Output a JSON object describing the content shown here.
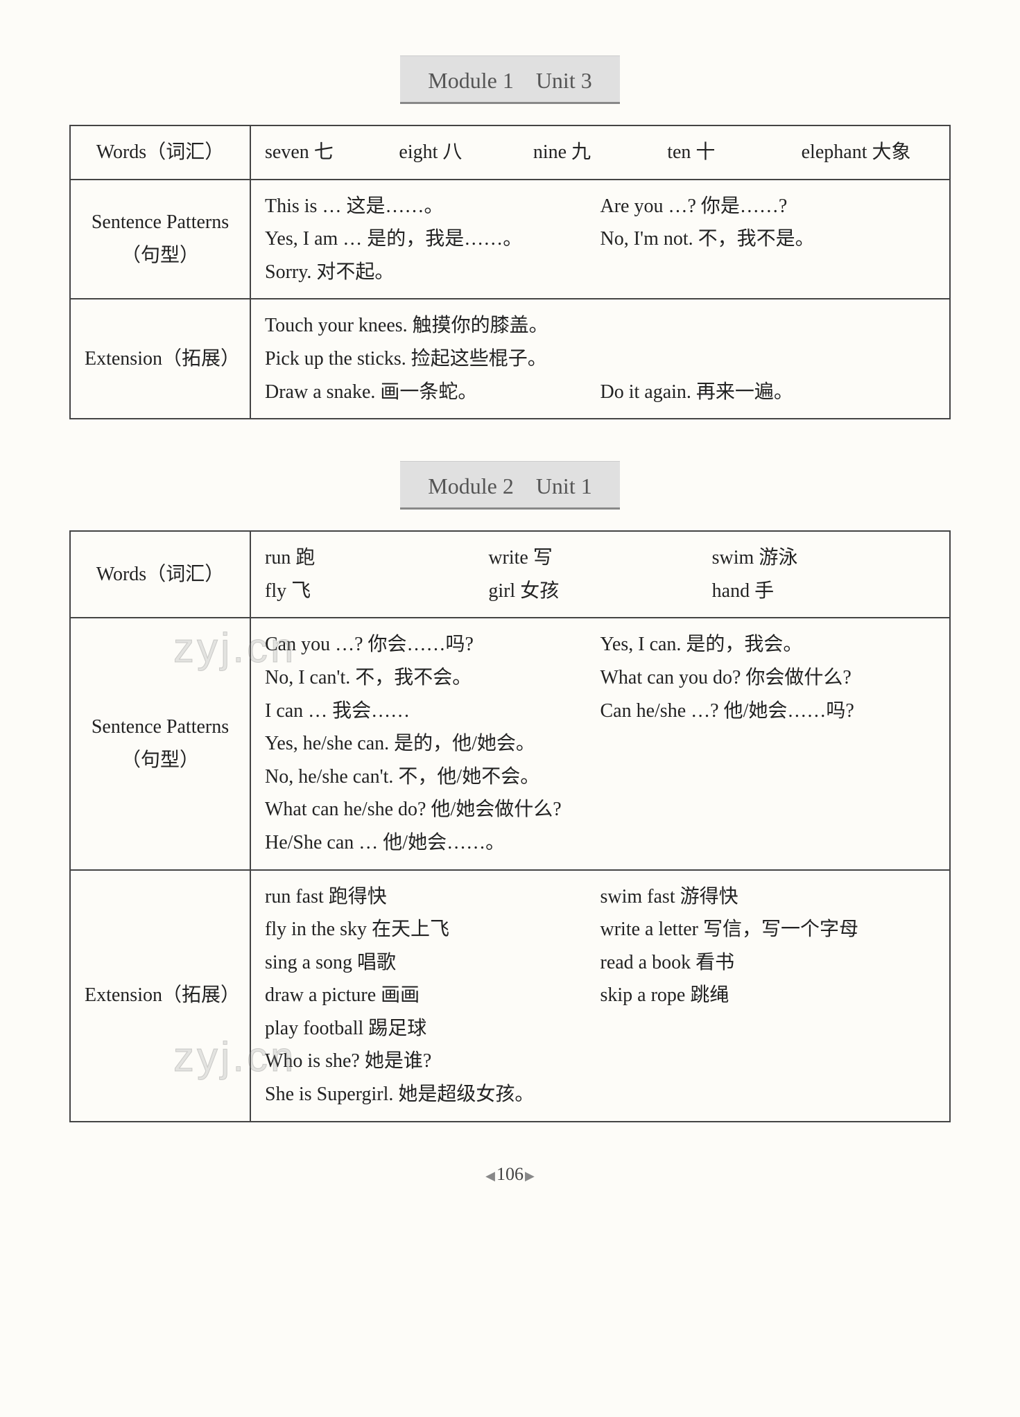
{
  "page_number": "106",
  "watermark_text": "zyj.cn",
  "sections": [
    {
      "heading": "Module 1　Unit 3",
      "rows": [
        {
          "label": "Words（词汇）",
          "lines": [
            [
              "seven 七",
              "eight 八",
              "nine 九",
              "ten 十",
              "elephant 大象"
            ]
          ]
        },
        {
          "label": "Sentence Patterns\n（句型）",
          "lines": [
            [
              "This is … 这是……。",
              "Are you …? 你是……?"
            ],
            [
              "Yes, I am … 是的，我是……。",
              "No, I'm not. 不，我不是。"
            ],
            [
              "Sorry. 对不起。",
              ""
            ]
          ]
        },
        {
          "label": "Extension（拓展）",
          "lines": [
            [
              "Touch your knees. 触摸你的膝盖。",
              ""
            ],
            [
              "Pick up the sticks. 捡起这些棍子。",
              ""
            ],
            [
              "Draw a snake. 画一条蛇。",
              "Do it again. 再来一遍。"
            ]
          ]
        }
      ]
    },
    {
      "heading": "Module 2　Unit 1",
      "rows": [
        {
          "label": "Words（词汇）",
          "lines": [
            [
              "run 跑",
              "write 写",
              "swim 游泳"
            ],
            [
              "fly 飞",
              "girl 女孩",
              "hand 手"
            ]
          ]
        },
        {
          "label": "Sentence Patterns\n（句型）",
          "lines": [
            [
              "Can you …? 你会……吗?",
              "Yes, I can. 是的，我会。"
            ],
            [
              "No, I can't. 不，我不会。",
              "What can you do? 你会做什么?"
            ],
            [
              "I can … 我会……",
              "Can he/she …? 他/她会……吗?"
            ],
            [
              "Yes, he/she can. 是的，他/她会。",
              ""
            ],
            [
              "No, he/she can't. 不，他/她不会。",
              ""
            ],
            [
              "What can he/she do? 他/她会做什么?",
              ""
            ],
            [
              "He/She can … 他/她会……。",
              ""
            ]
          ]
        },
        {
          "label": "Extension（拓展）",
          "lines": [
            [
              "run fast 跑得快",
              "swim fast 游得快"
            ],
            [
              "fly in the sky 在天上飞",
              "write a letter 写信，写一个字母"
            ],
            [
              "sing a song 唱歌",
              "read a book 看书"
            ],
            [
              "draw a picture 画画",
              "skip a rope 跳绳"
            ],
            [
              "play football 踢足球",
              ""
            ],
            [
              "Who is she? 她是谁?",
              ""
            ],
            [
              "She is Supergirl. 她是超级女孩。",
              ""
            ]
          ]
        }
      ]
    }
  ]
}
